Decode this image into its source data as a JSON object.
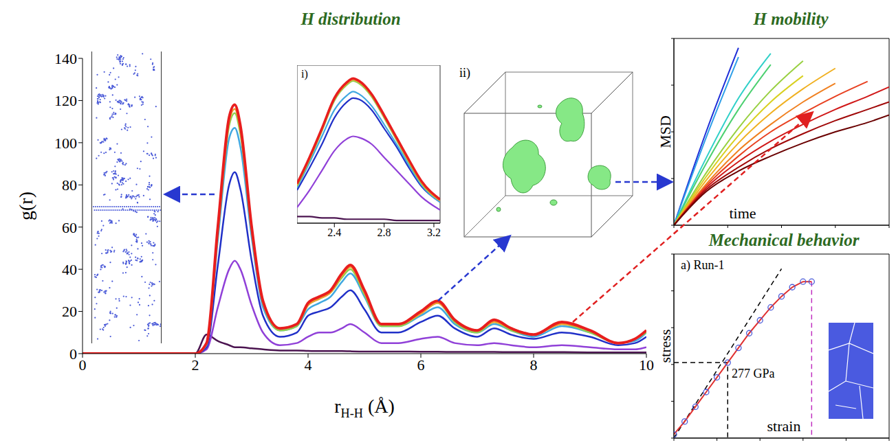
{
  "chart_data": [
    {
      "type": "line",
      "title": "H distribution",
      "x_label": "rH-H (Å)",
      "y_label": "g(r)",
      "x": [
        0,
        2,
        2.2,
        2.4,
        2.6,
        2.7,
        2.8,
        3.0,
        3.2,
        3.5,
        3.8,
        4.0,
        4.2,
        4.4,
        4.6,
        4.75,
        5.0,
        5.3,
        5.6,
        6.0,
        6.3,
        6.6,
        7.0,
        7.3,
        7.6,
        8.0,
        8.5,
        9.0,
        9.5,
        9.8,
        10
      ],
      "series": [
        {
          "color": "#4b1450",
          "values": [
            0,
            0,
            9,
            6,
            4,
            3,
            3,
            2.5,
            2,
            1.5,
            1.5,
            1.3,
            1.2,
            1.2,
            1.2,
            1.1,
            1,
            1,
            1,
            0.9,
            0.9,
            0.8,
            0.8,
            0.8,
            0.7,
            0.7,
            0.7,
            0.6,
            0.6,
            0.6,
            0.6
          ]
        },
        {
          "color": "#9040d8",
          "values": [
            0,
            0,
            2,
            22,
            40,
            44,
            40,
            23,
            10,
            4,
            5,
            8,
            10,
            10,
            12,
            14,
            10,
            5,
            5,
            7,
            8,
            5,
            4,
            5,
            4,
            3,
            4,
            3,
            2,
            2,
            3
          ]
        },
        {
          "color": "#2030c8",
          "values": [
            0,
            0,
            3,
            42,
            80,
            86,
            78,
            44,
            18,
            8,
            10,
            18,
            20,
            22,
            27,
            30,
            21,
            10,
            10,
            15,
            18,
            12,
            8,
            12,
            9,
            7,
            10,
            8,
            4,
            5,
            8
          ]
        },
        {
          "color": "#40a8e0",
          "values": [
            0,
            0,
            4,
            54,
            102,
            107,
            98,
            55,
            22,
            11,
            13,
            21,
            24,
            27,
            34,
            38,
            27,
            13,
            13,
            18,
            22,
            14,
            10,
            14,
            11,
            8,
            13,
            10,
            5,
            6,
            10
          ]
        },
        {
          "color": "#90d050",
          "values": [
            0,
            0,
            5,
            57,
            108,
            114,
            104,
            58,
            24,
            11,
            13,
            23,
            26,
            29,
            36,
            40,
            28,
            13,
            13,
            19,
            24,
            15,
            10,
            15,
            11,
            9,
            14,
            10,
            5,
            7,
            10
          ]
        },
        {
          "color": "#f0a030",
          "values": [
            0,
            0,
            5,
            58,
            110,
            116,
            106,
            59,
            24,
            12,
            14,
            23,
            26,
            29,
            37,
            41,
            29,
            14,
            14,
            19,
            24,
            16,
            11,
            15,
            12,
            9,
            14,
            11,
            5,
            7,
            11
          ]
        },
        {
          "color": "#e81e1e",
          "values": [
            0,
            0,
            5,
            60,
            112,
            118,
            108,
            60,
            25,
            12,
            14,
            24,
            27,
            30,
            38,
            42,
            30,
            14,
            14,
            20,
            25,
            16,
            11,
            16,
            12,
            9,
            15,
            11,
            5,
            7,
            11
          ]
        }
      ],
      "xlim": [
        0,
        10
      ],
      "ylim": [
        0,
        140
      ],
      "xticks": [
        0,
        2,
        4,
        6,
        8,
        10
      ],
      "yticks": [
        0,
        20,
        40,
        60,
        80,
        100,
        120,
        140
      ],
      "annotations": [
        "ii)"
      ]
    },
    {
      "type": "line",
      "title": "i)",
      "x": [
        2.1,
        2.2,
        2.3,
        2.4,
        2.5,
        2.55,
        2.6,
        2.7,
        2.8,
        2.9,
        3.0,
        3.1,
        3.25
      ],
      "series": [
        {
          "color": "#4b1450",
          "values": [
            5,
            5,
            4,
            4,
            3,
            3,
            3,
            3,
            3,
            2,
            2,
            2,
            2
          ]
        },
        {
          "color": "#9040d8",
          "values": [
            12,
            25,
            40,
            55,
            64,
            66,
            65,
            60,
            50,
            40,
            30,
            20,
            10
          ]
        },
        {
          "color": "#2030c8",
          "values": [
            25,
            42,
            60,
            80,
            92,
            95,
            94,
            86,
            72,
            58,
            42,
            28,
            16
          ]
        },
        {
          "color": "#40a8e0",
          "values": [
            27,
            46,
            66,
            86,
            97,
            100,
            98,
            89,
            75,
            60,
            44,
            29,
            16
          ]
        },
        {
          "color": "#90d050",
          "values": [
            28,
            48,
            70,
            93,
            105,
            108,
            106,
            96,
            80,
            63,
            46,
            30,
            17
          ]
        },
        {
          "color": "#f0a030",
          "values": [
            29,
            49,
            71,
            94,
            106,
            109,
            107,
            97,
            81,
            64,
            47,
            31,
            17
          ]
        },
        {
          "color": "#e81e1e",
          "values": [
            30,
            50,
            72,
            95,
            107,
            110,
            108,
            98,
            82,
            65,
            48,
            32,
            18
          ]
        }
      ],
      "xlim": [
        2.1,
        3.25
      ],
      "ylim": [
        0,
        120
      ],
      "xticks": [
        2.4,
        2.8,
        3.2
      ],
      "tick_labels": "x"
    },
    {
      "type": "line",
      "title": "H mobility",
      "x_label": "time",
      "y_label": "MSD",
      "x": [
        0,
        0.15,
        0.3,
        0.45,
        0.6,
        0.75,
        0.9,
        1.0
      ],
      "series": [
        {
          "color": "#1f2fd8",
          "values": [
            0,
            0.5,
            0.95,
            null,
            null,
            null,
            null,
            null
          ]
        },
        {
          "color": "#2f9fe8",
          "values": [
            0,
            0.47,
            0.9,
            null,
            null,
            null,
            null,
            null
          ]
        },
        {
          "color": "#2fd0c8",
          "values": [
            0,
            0.36,
            0.68,
            0.92,
            null,
            null,
            null,
            null
          ]
        },
        {
          "color": "#4cd070",
          "values": [
            0,
            0.33,
            0.62,
            0.86,
            null,
            null,
            null,
            null
          ]
        },
        {
          "color": "#98d040",
          "values": [
            0,
            0.28,
            0.52,
            0.72,
            0.88,
            null,
            null,
            null
          ]
        },
        {
          "color": "#d8d020",
          "values": [
            0,
            0.26,
            0.48,
            0.66,
            0.8,
            null,
            null,
            null
          ]
        },
        {
          "color": "#f0b020",
          "values": [
            0,
            0.24,
            0.44,
            0.6,
            0.73,
            0.84,
            null,
            null
          ]
        },
        {
          "color": "#f08020",
          "values": [
            0,
            0.22,
            0.4,
            0.54,
            0.66,
            0.76,
            null,
            null
          ]
        },
        {
          "color": "#e84020",
          "values": [
            0,
            0.21,
            0.37,
            0.5,
            0.6,
            0.69,
            0.77,
            null
          ]
        },
        {
          "color": "#d01818",
          "values": [
            0,
            0.2,
            0.34,
            0.45,
            0.54,
            0.62,
            0.69,
            0.74
          ]
        },
        {
          "color": "#a00808",
          "values": [
            0,
            0.19,
            0.31,
            0.41,
            0.49,
            0.56,
            0.62,
            0.66
          ]
        },
        {
          "color": "#6a0000",
          "values": [
            0,
            0.18,
            0.29,
            0.37,
            0.44,
            0.5,
            0.55,
            0.59
          ]
        }
      ],
      "xlim": [
        0,
        1
      ],
      "ylim": [
        0,
        1
      ],
      "xticks": [
        0,
        0.25,
        0.5,
        0.75,
        1
      ],
      "yticks": [
        0,
        0.25,
        0.5,
        0.75,
        1
      ],
      "tick_labels": false
    },
    {
      "type": "line",
      "title": "Mechanical behavior",
      "subtitle": "a) Run-1",
      "x_label": "strain",
      "y_label": "stress",
      "series": [
        {
          "color": "#000000",
          "line_style": "dashed",
          "x": [
            0,
            0.5
          ],
          "values": [
            0,
            0.92
          ]
        },
        {
          "color": "#000000",
          "line_style": "dashed",
          "x": [
            0,
            0.25,
            0.25
          ],
          "values": [
            0.41,
            0.41,
            0
          ]
        },
        {
          "color": "#c030c0",
          "line_style": "dashed",
          "x": [
            0.64,
            0.64
          ],
          "values": [
            0.85,
            0
          ]
        },
        {
          "color": "#e03030",
          "marker": "circle",
          "x": [
            0,
            0.05,
            0.1,
            0.15,
            0.2,
            0.25,
            0.3,
            0.35,
            0.4,
            0.45,
            0.5,
            0.55,
            0.6,
            0.64
          ],
          "values": [
            0.02,
            0.09,
            0.17,
            0.25,
            0.33,
            0.41,
            0.49,
            0.57,
            0.64,
            0.71,
            0.77,
            0.82,
            0.85,
            0.85
          ]
        }
      ],
      "xlim": [
        0,
        1
      ],
      "ylim": [
        0,
        1
      ],
      "xticks": [
        0,
        0.2,
        0.4,
        0.6,
        0.8,
        1
      ],
      "yticks": [
        0,
        0.2,
        0.4,
        0.6,
        0.8,
        1
      ],
      "tick_labels": false,
      "annotations": [
        "277 GPa"
      ]
    }
  ]
}
